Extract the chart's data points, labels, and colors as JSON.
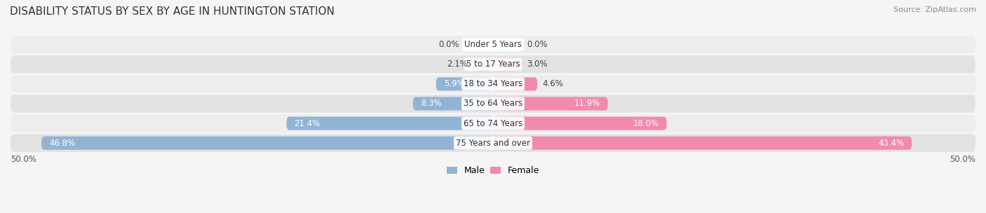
{
  "title": "DISABILITY STATUS BY SEX BY AGE IN HUNTINGTON STATION",
  "source": "Source: ZipAtlas.com",
  "categories": [
    "Under 5 Years",
    "5 to 17 Years",
    "18 to 34 Years",
    "35 to 64 Years",
    "65 to 74 Years",
    "75 Years and over"
  ],
  "male_values": [
    0.0,
    2.1,
    5.9,
    8.3,
    21.4,
    46.8
  ],
  "female_values": [
    0.0,
    3.0,
    4.6,
    11.9,
    18.0,
    43.4
  ],
  "male_color": "#92b4d4",
  "female_color": "#f08bad",
  "row_bg_even": "#ededee",
  "row_bg_odd": "#e2e2e3",
  "max_val": 50.0,
  "legend_male": "Male",
  "legend_female": "Female",
  "title_fontsize": 11,
  "source_fontsize": 8,
  "label_fontsize": 8.5,
  "category_fontsize": 8.5
}
